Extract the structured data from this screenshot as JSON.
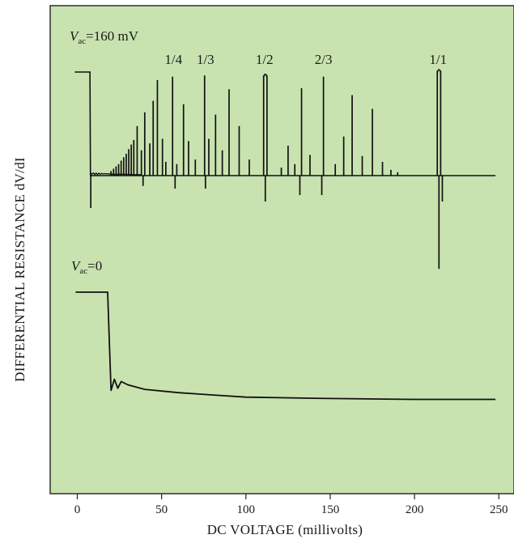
{
  "chart_data": {
    "type": "line",
    "xlabel": "DC VOLTAGE (millivolts)",
    "ylabel": "DIFFERENTIAL RESISTANCE dV/dI",
    "xlim": [
      0,
      250
    ],
    "x_ticks": [
      0,
      50,
      100,
      150,
      200,
      250
    ],
    "x_tick_labels": [
      "0",
      "50",
      "100",
      "150",
      "200",
      "250"
    ],
    "grid": false,
    "legend": "none",
    "colors": {
      "background": "#c9e3b0",
      "line": "#111111",
      "frame": "#222222"
    },
    "panels": [
      {
        "label_var": "V",
        "label_sub": "ac",
        "label_value": "=160 mV",
        "annotations": [
          {
            "text": "1/4",
            "x": 57
          },
          {
            "text": "1/3",
            "x": 76
          },
          {
            "text": "1/2",
            "x": 111
          },
          {
            "text": "2/3",
            "x": 146
          },
          {
            "text": "1/1",
            "x": 214
          }
        ],
        "baseline_level": 0.1,
        "plateau_level": 1.0,
        "plateau_end": 7,
        "spikes": [
          {
            "x": 20,
            "h": 0.04
          },
          {
            "x": 21.5,
            "h": 0.06
          },
          {
            "x": 23,
            "h": 0.08
          },
          {
            "x": 24.5,
            "h": 0.1
          },
          {
            "x": 26,
            "h": 0.13
          },
          {
            "x": 27.5,
            "h": 0.16
          },
          {
            "x": 29,
            "h": 0.19
          },
          {
            "x": 30.5,
            "h": 0.23
          },
          {
            "x": 32,
            "h": 0.27
          },
          {
            "x": 33.5,
            "h": 0.31
          },
          {
            "x": 35.5,
            "h": 0.43
          },
          {
            "x": 38,
            "h": 0.22
          },
          {
            "x": 40,
            "h": 0.55
          },
          {
            "x": 43,
            "h": 0.28
          },
          {
            "x": 45,
            "h": 0.65
          },
          {
            "x": 47.5,
            "h": 0.83
          },
          {
            "x": 50.5,
            "h": 0.32
          },
          {
            "x": 52.5,
            "h": 0.12
          },
          {
            "x": 56.5,
            "h": 0.86
          },
          {
            "x": 59,
            "h": 0.1
          },
          {
            "x": 63,
            "h": 0.62
          },
          {
            "x": 66,
            "h": 0.3
          },
          {
            "x": 70,
            "h": 0.14
          },
          {
            "x": 75.5,
            "h": 0.87
          },
          {
            "x": 78,
            "h": 0.32
          },
          {
            "x": 82,
            "h": 0.53
          },
          {
            "x": 86,
            "h": 0.22
          },
          {
            "x": 90,
            "h": 0.75
          },
          {
            "x": 96,
            "h": 0.43
          },
          {
            "x": 102,
            "h": 0.14
          },
          {
            "x": 110.5,
            "h": 0.87
          },
          {
            "x": 112.5,
            "h": 0.87
          },
          {
            "x": 121,
            "h": 0.07
          },
          {
            "x": 125,
            "h": 0.26
          },
          {
            "x": 129,
            "h": 0.1
          },
          {
            "x": 133,
            "h": 0.76
          },
          {
            "x": 138,
            "h": 0.18
          },
          {
            "x": 146,
            "h": 0.86
          },
          {
            "x": 153,
            "h": 0.1
          },
          {
            "x": 158,
            "h": 0.34
          },
          {
            "x": 163,
            "h": 0.7
          },
          {
            "x": 169,
            "h": 0.17
          },
          {
            "x": 175,
            "h": 0.58
          },
          {
            "x": 181,
            "h": 0.12
          },
          {
            "x": 186,
            "h": 0.05
          },
          {
            "x": 190,
            "h": 0.03
          },
          {
            "x": 213.5,
            "h": 0.91
          },
          {
            "x": 215.5,
            "h": 0.91
          }
        ],
        "dips": [
          {
            "x": 8,
            "d": 0.25
          },
          {
            "x": 39,
            "d": 0.08
          },
          {
            "x": 58,
            "d": 0.1
          },
          {
            "x": 76,
            "d": 0.1
          },
          {
            "x": 111.5,
            "d": 0.2
          },
          {
            "x": 132,
            "d": 0.15
          },
          {
            "x": 145,
            "d": 0.15
          },
          {
            "x": 214.5,
            "d": 0.72
          },
          {
            "x": 216.5,
            "d": 0.2
          }
        ],
        "end_x": 248
      },
      {
        "label_var": "V",
        "label_sub": "ac",
        "label_value": "=0",
        "x": [
          -1,
          18,
          19,
          20,
          22,
          24,
          26,
          30,
          40,
          60,
          80,
          100,
          140,
          200,
          248
        ],
        "y": [
          1.0,
          1.0,
          0.55,
          0.12,
          0.22,
          0.14,
          0.2,
          0.17,
          0.13,
          0.1,
          0.08,
          0.06,
          0.05,
          0.04,
          0.04
        ]
      }
    ]
  }
}
